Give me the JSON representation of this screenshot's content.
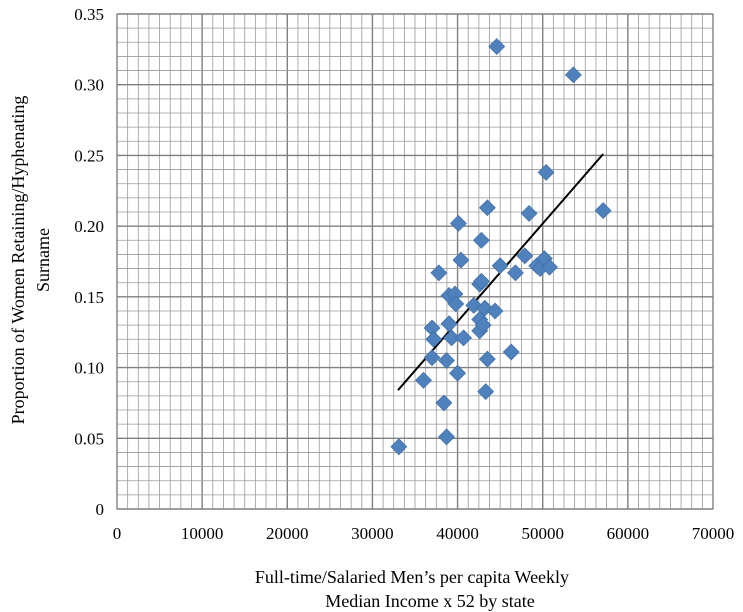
{
  "chart_data": {
    "type": "scatter",
    "title": "",
    "xlabel": [
      "Full-time/Salaried Men’s per capita Weekly",
      "Median Income x 52 by state"
    ],
    "ylabel": [
      "Proportion of Women Retaining/Hyphenating",
      "Surname"
    ],
    "xlim": [
      0,
      70000
    ],
    "ylim": [
      0,
      0.35
    ],
    "x_ticks": [
      "0",
      "10000",
      "20000",
      "30000",
      "40000",
      "50000",
      "60000",
      "70000"
    ],
    "y_ticks": [
      "0",
      "0.05",
      "0.10",
      "0.15",
      "0.20",
      "0.25",
      "0.30",
      "0.35"
    ],
    "grid": true,
    "legend": "none",
    "colors": {
      "marker": "#4f81bd",
      "trendline": "#000000",
      "grid": "#9a9a9a"
    },
    "series": [
      {
        "marker": "diamond",
        "points": [
          [
            33100,
            0.044
          ],
          [
            36000,
            0.091
          ],
          [
            37000,
            0.128
          ],
          [
            37000,
            0.107
          ],
          [
            37200,
            0.12
          ],
          [
            37800,
            0.167
          ],
          [
            38400,
            0.075
          ],
          [
            38700,
            0.051
          ],
          [
            38700,
            0.105
          ],
          [
            39000,
            0.131
          ],
          [
            39000,
            0.151
          ],
          [
            39300,
            0.121
          ],
          [
            39700,
            0.152
          ],
          [
            39800,
            0.145
          ],
          [
            40000,
            0.096
          ],
          [
            40100,
            0.202
          ],
          [
            40400,
            0.176
          ],
          [
            40700,
            0.121
          ],
          [
            41900,
            0.144
          ],
          [
            42600,
            0.134
          ],
          [
            42600,
            0.159
          ],
          [
            42600,
            0.126
          ],
          [
            42800,
            0.19
          ],
          [
            42800,
            0.161
          ],
          [
            43000,
            0.13
          ],
          [
            43200,
            0.142
          ],
          [
            43300,
            0.083
          ],
          [
            43500,
            0.213
          ],
          [
            43500,
            0.106
          ],
          [
            44400,
            0.14
          ],
          [
            44600,
            0.327
          ],
          [
            45000,
            0.172
          ],
          [
            46300,
            0.111
          ],
          [
            46800,
            0.167
          ],
          [
            47900,
            0.179
          ],
          [
            48400,
            0.209
          ],
          [
            49300,
            0.172
          ],
          [
            49700,
            0.17
          ],
          [
            50200,
            0.177
          ],
          [
            50400,
            0.238
          ],
          [
            50800,
            0.171
          ],
          [
            53600,
            0.307
          ],
          [
            57100,
            0.211
          ]
        ]
      }
    ],
    "trendline": {
      "x": [
        33000,
        57100
      ],
      "y": [
        0.084,
        0.251
      ]
    }
  }
}
